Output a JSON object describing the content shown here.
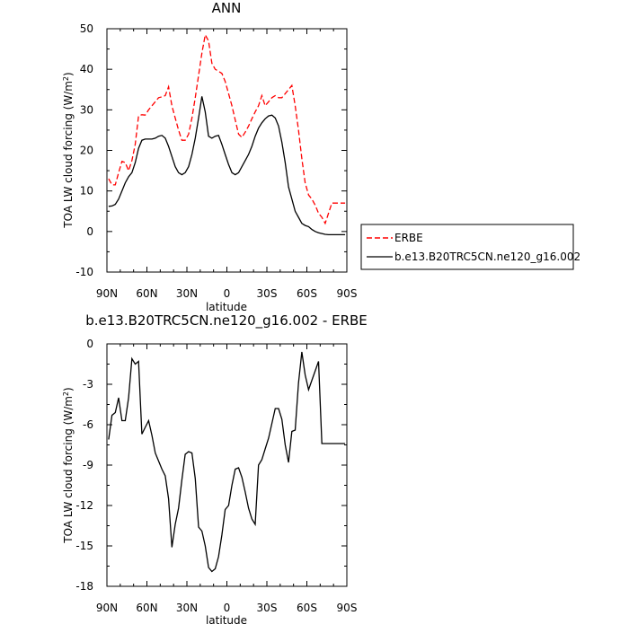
{
  "chart_data": [
    {
      "type": "line",
      "title": "ANN",
      "xlabel": "latitude",
      "ylabel": "TOA LW cloud forcing (W/m",
      "ylabel_sup": "2",
      "ylabel_tail": ")",
      "x_ticks": [
        "90N",
        "60N",
        "30N",
        "0",
        "30S",
        "60S",
        "90S"
      ],
      "y_ticks": [
        "-10",
        "0",
        "10",
        "20",
        "30",
        "40",
        "50"
      ],
      "xlim": [
        90,
        -90
      ],
      "ylim": [
        -10,
        50
      ],
      "legend_position": "right",
      "series": [
        {
          "name": "ERBE",
          "color": "#ff0000",
          "dash": "dashed",
          "x": [
            88.75,
            86.25,
            83.75,
            81.25,
            78.75,
            76.25,
            73.75,
            71.25,
            68.75,
            66.25,
            63.75,
            61.25,
            58.75,
            56.25,
            53.75,
            51.25,
            48.75,
            46.25,
            43.75,
            41.25,
            38.75,
            36.25,
            33.75,
            31.25,
            28.75,
            26.25,
            23.75,
            21.25,
            18.75,
            16.25,
            13.75,
            11.25,
            8.75,
            6.25,
            3.75,
            1.25,
            -1.25,
            -3.75,
            -6.25,
            -8.75,
            -11.25,
            -13.75,
            -16.25,
            -18.75,
            -21.25,
            -23.75,
            -26.25,
            -28.75,
            -31.25,
            -33.75,
            -36.25,
            -38.75,
            -41.25,
            -43.75,
            -46.25,
            -48.75,
            -51.25,
            -53.75,
            -56.25,
            -58.75,
            -61.25,
            -63.75,
            -66.25,
            -68.75,
            -71.25,
            -73.75,
            -76.25,
            -78.75,
            -81.25,
            -83.75,
            -86.25,
            -88.75
          ],
          "y": [
            13,
            11.5,
            11.5,
            14.5,
            17.3,
            17.0,
            15.0,
            17.5,
            21.5,
            28.5,
            28.8,
            28.7,
            30.0,
            31.0,
            32.0,
            33.0,
            33.2,
            33.5,
            35.7,
            31.0,
            28.0,
            25.0,
            22.5,
            22.5,
            24.0,
            28.0,
            33.0,
            38.5,
            44.0,
            48.5,
            47.0,
            41.5,
            40.0,
            39.5,
            39.0,
            37.0,
            34.0,
            31.0,
            27.5,
            24.0,
            23.2,
            24.5,
            26.0,
            27.8,
            29.5,
            31.0,
            33.5,
            31.0,
            32.0,
            33.0,
            33.5,
            33.0,
            33.0,
            34.0,
            35.0,
            36.0,
            31.0,
            25.0,
            18.0,
            12.0,
            9.0,
            8.0,
            6.5,
            4.5,
            3.5,
            2.0,
            4.5,
            7.0,
            7.0,
            7.0,
            7.0,
            7.0
          ]
        },
        {
          "name": "b.e13.B20TRC5CN.ne120_g16.002",
          "color": "#000000",
          "dash": "solid",
          "x": [
            88.75,
            86.25,
            83.75,
            81.25,
            78.75,
            76.25,
            73.75,
            71.25,
            68.75,
            66.25,
            63.75,
            61.25,
            58.75,
            56.25,
            53.75,
            51.25,
            48.75,
            46.25,
            43.75,
            41.25,
            38.75,
            36.25,
            33.75,
            31.25,
            28.75,
            26.25,
            23.75,
            21.25,
            18.75,
            16.25,
            13.75,
            11.25,
            8.75,
            6.25,
            3.75,
            1.25,
            -1.25,
            -3.75,
            -6.25,
            -8.75,
            -11.25,
            -13.75,
            -16.25,
            -18.75,
            -21.25,
            -23.75,
            -26.25,
            -28.75,
            -31.25,
            -33.75,
            -36.25,
            -38.75,
            -41.25,
            -43.75,
            -46.25,
            -48.75,
            -51.25,
            -53.75,
            -56.25,
            -58.75,
            -61.25,
            -63.75,
            -66.25,
            -68.75,
            -71.25,
            -73.75,
            -76.25,
            -78.75,
            -81.25,
            -83.75,
            -86.25,
            -88.75
          ],
          "y": [
            6.2,
            6.3,
            6.7,
            8.0,
            10.0,
            12.0,
            13.5,
            14.5,
            17.0,
            20.5,
            22.5,
            22.8,
            22.8,
            22.8,
            23.0,
            23.5,
            23.7,
            23.0,
            21.0,
            18.5,
            16.0,
            14.5,
            14.0,
            14.5,
            16.0,
            19.0,
            23.0,
            28.0,
            33.3,
            29.5,
            23.5,
            23.0,
            23.5,
            23.7,
            21.5,
            19.0,
            16.5,
            14.5,
            14.0,
            14.5,
            16.0,
            17.5,
            19.0,
            21.0,
            23.5,
            25.5,
            26.8,
            27.8,
            28.5,
            28.7,
            28.0,
            26.0,
            22.0,
            17.0,
            11.0,
            8.0,
            5.0,
            3.5,
            2.0,
            1.5,
            1.2,
            0.5,
            0.0,
            -0.3,
            -0.5,
            -0.7,
            -0.8,
            -0.8,
            -0.8,
            -0.8,
            -0.8,
            -0.8
          ]
        }
      ]
    },
    {
      "type": "line",
      "title": "b.e13.B20TRC5CN.ne120_g16.002 - ERBE",
      "xlabel": "latitude",
      "ylabel": "TOA LW cloud forcing (W/m",
      "ylabel_sup": "2",
      "ylabel_tail": ")",
      "x_ticks": [
        "90N",
        "60N",
        "30N",
        "0",
        "30S",
        "60S",
        "90S"
      ],
      "y_ticks": [
        "-18",
        "-15",
        "-12",
        "-9",
        "-6",
        "-3",
        "0"
      ],
      "xlim": [
        90,
        -90
      ],
      "ylim": [
        -18,
        0
      ],
      "series": [
        {
          "color": "#000000",
          "dash": "solid",
          "x": [
            88.75,
            86.25,
            83.75,
            81.25,
            78.75,
            76.25,
            73.75,
            71.25,
            68.75,
            66.25,
            63.75,
            61.25,
            58.75,
            56.25,
            53.75,
            51.25,
            48.75,
            46.25,
            43.75,
            41.25,
            38.75,
            36.25,
            33.75,
            31.25,
            28.75,
            26.25,
            23.75,
            21.25,
            18.75,
            16.25,
            13.75,
            11.25,
            8.75,
            6.25,
            3.75,
            1.25,
            -1.25,
            -3.75,
            -6.25,
            -8.75,
            -11.25,
            -13.75,
            -16.25,
            -18.75,
            -21.25,
            -23.75,
            -26.25,
            -28.75,
            -31.25,
            -33.75,
            -36.25,
            -38.75,
            -41.25,
            -43.75,
            -46.25,
            -48.75,
            -51.25,
            -53.75,
            -56.25,
            -58.75,
            -61.25,
            -63.75,
            -66.25,
            -68.75,
            -71.25,
            -73.75,
            -76.25,
            -78.75,
            -81.25,
            -83.75,
            -86.25,
            -88.75
          ],
          "y": [
            -7.1,
            -5.3,
            -5.1,
            -4.0,
            -5.7,
            -5.7,
            -4.0,
            -1.1,
            -1.5,
            -1.3,
            -6.7,
            -6.2,
            -5.7,
            -6.8,
            -8.1,
            -8.7,
            -9.3,
            -9.8,
            -11.5,
            -15.1,
            -13.4,
            -12.2,
            -10.1,
            -8.2,
            -8.0,
            -8.1,
            -10.0,
            -13.6,
            -13.9,
            -15.0,
            -16.6,
            -16.9,
            -16.7,
            -15.8,
            -14.2,
            -12.3,
            -12.0,
            -10.5,
            -9.3,
            -9.2,
            -9.9,
            -11.0,
            -12.2,
            -13.0,
            -13.4,
            -9.0,
            -8.6,
            -7.8,
            -7.0,
            -5.9,
            -4.8,
            -4.8,
            -5.6,
            -7.5,
            -8.8,
            -6.5,
            -6.4,
            -2.9,
            -0.6,
            -2.3,
            -3.4,
            -2.7,
            -2.0,
            -1.3,
            -7.4,
            -7.4,
            -7.4,
            -7.4,
            -7.4,
            -7.4,
            -7.4,
            -7.4
          ]
        }
      ]
    }
  ]
}
